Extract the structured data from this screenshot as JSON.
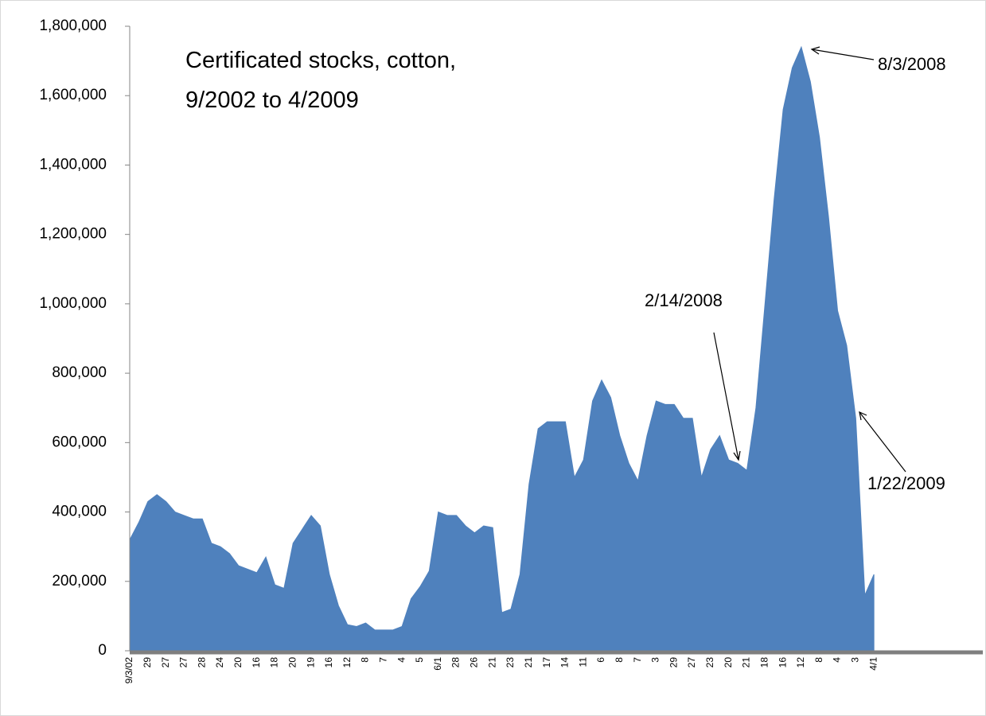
{
  "chart_data": {
    "type": "area",
    "title": [
      "Certificated stocks, cotton,",
      "9/2002 to 4/2009"
    ],
    "annotations": [
      "8/3/2008",
      "2/14/2008",
      "1/22/2009"
    ],
    "color": "#4f81bd",
    "categories": [
      "9/3/02",
      null,
      "29",
      null,
      "27",
      null,
      "27",
      null,
      "28",
      null,
      "24",
      null,
      "20",
      null,
      "16",
      null,
      "18",
      null,
      "20",
      null,
      "19",
      null,
      "16",
      null,
      "12",
      null,
      "8",
      null,
      "7",
      null,
      "4",
      null,
      "5",
      null,
      "6/1",
      null,
      "28",
      null,
      "26",
      null,
      "21",
      null,
      "23",
      null,
      "21",
      null,
      "17",
      null,
      "14",
      null,
      "11",
      null,
      "6",
      null,
      "8",
      null,
      "7",
      null,
      "3",
      null,
      "29",
      null,
      "27",
      null,
      "23",
      null,
      "20",
      null,
      "21",
      null,
      "18",
      null,
      "16",
      null,
      "12",
      null,
      "8",
      null,
      "4",
      null,
      "3",
      null,
      "4/1",
      null,
      null,
      null,
      null,
      null,
      null,
      null,
      null,
      null,
      null,
      null,
      null
    ],
    "values": [
      320000,
      370000,
      430000,
      450000,
      430000,
      400000,
      390000,
      380000,
      380000,
      310000,
      300000,
      280000,
      245000,
      235000,
      225000,
      270000,
      190000,
      180000,
      310000,
      350000,
      390000,
      360000,
      220000,
      130000,
      75000,
      70000,
      80000,
      60000,
      60000,
      60000,
      70000,
      150000,
      185000,
      230000,
      400000,
      390000,
      390000,
      360000,
      340000,
      360000,
      355000,
      110000,
      120000,
      220000,
      480000,
      640000,
      660000,
      660000,
      660000,
      500000,
      550000,
      720000,
      780000,
      730000,
      620000,
      540000,
      490000,
      620000,
      720000,
      710000,
      710000,
      670000,
      670000,
      500000,
      580000,
      620000,
      550000,
      540000,
      520000,
      700000,
      1000000,
      1300000,
      1560000,
      1680000,
      1740000,
      1640000,
      1480000,
      1250000,
      980000,
      880000,
      670000,
      160000,
      220000,
      null,
      null,
      null,
      null,
      null,
      null,
      null,
      null,
      null,
      null,
      null,
      null
    ],
    "ylim": [
      0,
      1800000
    ],
    "yticks": [
      0,
      {
        "value": 200000,
        "label": "200,000"
      },
      {
        "value": 400000,
        "label": "400,000"
      },
      {
        "value": 600000,
        "label": "600,000"
      },
      {
        "value": 800000,
        "label": "800,000"
      },
      {
        "value": 1000000,
        "label": "1,000,000"
      },
      {
        "value": 1200000,
        "label": "1,200,000"
      },
      {
        "value": 1400000,
        "label": "1,400,000"
      },
      {
        "value": 1600000,
        "label": "1,600,000"
      },
      {
        "value": 1800000,
        "label": "1,800,000"
      }
    ]
  }
}
